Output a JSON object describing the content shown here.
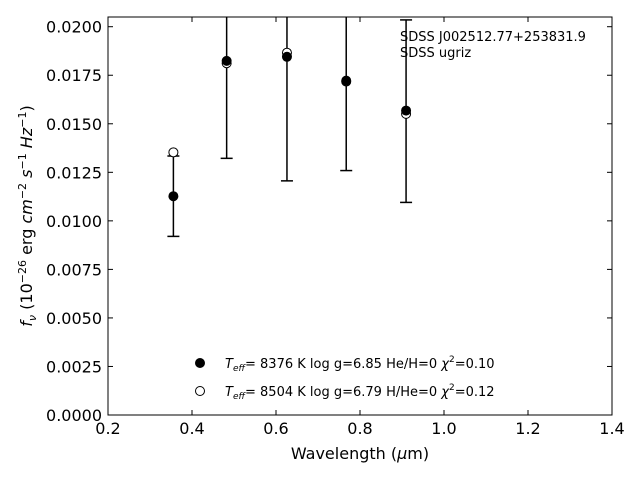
{
  "chart_data": {
    "type": "scatter",
    "title": "",
    "xlabel": "Wavelength (μm)",
    "ylabel": "f_ν (10^-26 erg cm^-2 s^-1 Hz^-1)",
    "xlim": [
      0.2,
      1.4
    ],
    "ylim": [
      0.0,
      0.0205
    ],
    "xticks": [
      0.2,
      0.4,
      0.6,
      0.8,
      1.0,
      1.2,
      1.4
    ],
    "xtick_labels": [
      "0.2",
      "0.4",
      "0.6",
      "0.8",
      "1.0",
      "1.2",
      "1.4"
    ],
    "yticks": [
      0.0,
      0.0025,
      0.005,
      0.0075,
      0.01,
      0.0125,
      0.015,
      0.0175,
      0.02
    ],
    "ytick_labels": [
      "0.0000",
      "0.0025",
      "0.0050",
      "0.0075",
      "0.0100",
      "0.0125",
      "0.0150",
      "0.0175",
      "0.0200"
    ],
    "grid": false,
    "legend_position": "bottom-center",
    "annotation": [
      "SDSS J002512.77+253831.9",
      "SDSS ugriz"
    ],
    "observed": {
      "x": [
        0.3557,
        0.4825,
        0.6261,
        0.7672,
        0.9097
      ],
      "y": [
        0.01127,
        0.01818,
        0.01843,
        0.01718,
        0.01565
      ],
      "yerr": [
        0.00207,
        0.00496,
        0.00637,
        0.00459,
        0.0047
      ]
    },
    "series": [
      {
        "marker": "filled-circle",
        "color": "#000000",
        "legend": [
          "T",
          "eff",
          "=  8376 K  log g=6.85  He/H=0  ",
          "χ",
          "2",
          "=0.10"
        ],
        "y": [
          0.01127,
          0.01824,
          0.01845,
          0.01722,
          0.01568
        ]
      },
      {
        "marker": "open-circle",
        "color": "#000000",
        "legend": [
          "T",
          "eff",
          "=  8504 K  log g=6.79  H/He=0  ",
          "χ",
          "2",
          "=0.12"
        ],
        "y": [
          0.01353,
          0.01812,
          0.01866,
          0.01717,
          0.01551
        ]
      }
    ]
  }
}
